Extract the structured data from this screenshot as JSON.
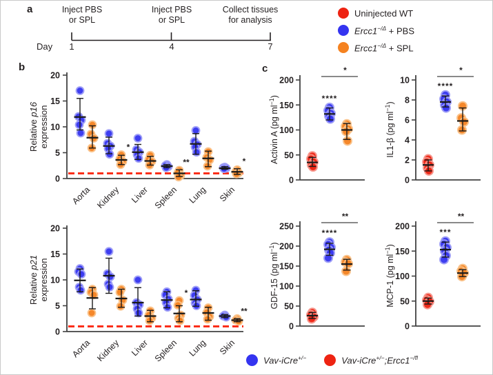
{
  "panel_a": {
    "label": "a",
    "day_label": "Day",
    "events": [
      {
        "text_lines": [
          "Inject PBS",
          "or SPL"
        ],
        "day": "1"
      },
      {
        "text_lines": [
          "Inject PBS",
          "or SPL"
        ],
        "day": "4"
      },
      {
        "text_lines": [
          "Collect tissues",
          "for analysis"
        ],
        "day": "7"
      }
    ]
  },
  "legend_top": {
    "items": [
      {
        "color": "red",
        "segments": [
          {
            "t": "Uninjected WT"
          }
        ]
      },
      {
        "color": "blue",
        "segments": [
          {
            "t": "Ercc1",
            "i": true
          },
          {
            "t": "−/Δ",
            "sup": true,
            "i": true
          },
          {
            "t": " + PBS"
          }
        ]
      },
      {
        "color": "orange",
        "segments": [
          {
            "t": "Ercc1",
            "i": true
          },
          {
            "t": "−/Δ",
            "sup": true,
            "i": true
          },
          {
            "t": " + SPL"
          }
        ]
      }
    ]
  },
  "legend_bottom": {
    "items": [
      {
        "color": "blue",
        "segments": [
          {
            "t": "Vav-iCre",
            "i": true
          },
          {
            "t": "+/−",
            "sup": true,
            "i": true
          }
        ]
      },
      {
        "color": "red",
        "segments": [
          {
            "t": "Vav-iCre",
            "i": true
          },
          {
            "t": "+/−",
            "sup": true,
            "i": true
          },
          {
            "t": ";",
            "i": true
          },
          {
            "t": "Ercc1",
            "i": true
          },
          {
            "t": "−/fl",
            "sup": true,
            "i": true
          }
        ]
      }
    ]
  },
  "panel_b": {
    "label": "b"
  },
  "panel_c": {
    "label": "c"
  },
  "colors": {
    "red": "#ee2312",
    "blue": "#3434f0",
    "orange": "#f58220",
    "halo_red": "#f7948a",
    "halo_blue": "#9a9af7",
    "halo_orange": "#fac085",
    "ref_line": "#fb2e18",
    "axis": "#404040",
    "errbar": "#1a1a1a",
    "sig_bar": "#787878",
    "sig_text": "#1a1a1a"
  },
  "chart_data": [
    {
      "id": "p16",
      "kind": "grouped",
      "type": "scatter",
      "ylabel_lines": [
        [
          {
            "t": "Relative "
          },
          {
            "t": "p16",
            "i": true
          }
        ],
        [
          {
            "t": "expression"
          }
        ]
      ],
      "ylim": [
        0,
        20
      ],
      "yticks": [
        0,
        5,
        10,
        15,
        20
      ],
      "ref_line": 1,
      "categories": [
        "Aorta",
        "Kidney",
        "Liver",
        "Spleen",
        "Lung",
        "Skin"
      ],
      "series": [
        {
          "name": "Ercc1-/Δ + PBS",
          "color": "blue",
          "points": [
            [
              17.0,
              12.0,
              11.3,
              10.4,
              8.8
            ],
            [
              8.7,
              6.8,
              6.3,
              5.8,
              4.7
            ],
            [
              7.8,
              5.6,
              5.1,
              4.6,
              3.9
            ],
            [
              2.7,
              2.5,
              2.3,
              2.1
            ],
            [
              9.3,
              7.2,
              6.6,
              6.1,
              5.1
            ],
            [
              2.2,
              2.1,
              2.0,
              1.9
            ]
          ],
          "mean": [
            11.9,
            6.3,
            5.1,
            2.4,
            6.7,
            2.0
          ],
          "err_lo": [
            9.4,
            4.8,
            3.7,
            2.1,
            4.7,
            1.8
          ],
          "err_hi": [
            15.5,
            8.0,
            6.6,
            2.7,
            8.7,
            2.3
          ]
        },
        {
          "name": "Ercc1-/Δ + SPL",
          "color": "orange",
          "points": [
            [
              10.4,
              8.6,
              7.8,
              5.9
            ],
            [
              4.6,
              3.8,
              3.3,
              2.7
            ],
            [
              4.5,
              3.7,
              3.3,
              2.6
            ],
            [
              1.6,
              1.1,
              0.6,
              0.3
            ],
            [
              5.2,
              4.1,
              3.6,
              2.4
            ],
            [
              1.7,
              1.3,
              1.1,
              0.9
            ]
          ],
          "mean": [
            7.9,
            3.6,
            3.4,
            1.0,
            3.9,
            1.3
          ],
          "err_lo": [
            5.9,
            2.7,
            2.6,
            0.4,
            2.3,
            0.8
          ],
          "err_hi": [
            10.2,
            4.5,
            4.3,
            1.7,
            5.3,
            1.9
          ]
        }
      ],
      "sig": [
        "",
        "*",
        "",
        "**",
        "",
        "*"
      ]
    },
    {
      "id": "p21",
      "kind": "grouped",
      "type": "scatter",
      "ylabel_lines": [
        [
          {
            "t": "Relative "
          },
          {
            "t": "p21",
            "i": true
          }
        ],
        [
          {
            "t": "expression"
          }
        ]
      ],
      "ylim": [
        0,
        20
      ],
      "yticks": [
        0,
        5,
        10,
        15,
        20
      ],
      "ref_line": 1,
      "categories": [
        "Aorta",
        "Kidney",
        "Liver",
        "Spleen",
        "Lung",
        "Skin"
      ],
      "series": [
        {
          "name": "Ercc1-/Δ + PBS",
          "color": "blue",
          "points": [
            [
              12.2,
              11.6,
              11.1,
              8.6,
              8.0
            ],
            [
              15.5,
              11.2,
              10.6,
              9.2,
              8.6
            ],
            [
              10.0,
              5.6,
              5.2,
              4.4,
              3.6
            ],
            [
              7.7,
              7.1,
              6.3,
              5.6,
              4.7
            ],
            [
              8.0,
              7.0,
              6.2,
              5.5,
              5.0
            ],
            [
              3.2,
              3.0,
              2.8
            ]
          ],
          "mean": [
            9.9,
            10.8,
            5.6,
            6.1,
            6.2,
            3.0
          ],
          "err_lo": [
            7.7,
            7.4,
            3.0,
            4.6,
            4.9,
            2.7
          ],
          "err_hi": [
            12.1,
            14.2,
            8.5,
            7.7,
            7.9,
            3.3
          ]
        },
        {
          "name": "Ercc1-/Δ + SPL",
          "color": "orange",
          "points": [
            [
              8.2,
              7.6,
              7.1,
              3.6
            ],
            [
              8.2,
              7.6,
              6.1,
              4.9
            ],
            [
              4.0,
              3.2,
              2.6,
              2.1
            ],
            [
              6.0,
              5.1,
              3.2,
              2.6,
              2.1
            ],
            [
              4.6,
              3.7,
              2.9,
              2.4
            ],
            [
              2.5,
              2.2,
              2.0
            ]
          ],
          "mean": [
            6.5,
            6.4,
            3.0,
            3.5,
            3.6,
            2.2
          ],
          "err_lo": [
            4.4,
            4.7,
            1.9,
            1.9,
            2.2,
            1.9
          ],
          "err_hi": [
            8.5,
            8.2,
            4.1,
            5.0,
            4.7,
            2.5
          ]
        }
      ],
      "sig": [
        "",
        "",
        "",
        "*",
        "",
        "**"
      ]
    },
    {
      "id": "activin",
      "kind": "columns",
      "type": "scatter",
      "ylabel_segments": [
        {
          "t": "Activin A (pg ml"
        },
        {
          "t": "−1",
          "sup": true
        },
        {
          "t": ")"
        }
      ],
      "ylim": [
        0,
        200
      ],
      "yticks": [
        0,
        50,
        100,
        150,
        200
      ],
      "columns": [
        {
          "name": "Uninjected WT",
          "color": "red",
          "dots": [
            48,
            42,
            36,
            30,
            26
          ],
          "mean": 35,
          "lo": 27,
          "hi": 45
        },
        {
          "name": "Ercc1-/Δ + PBS",
          "color": "blue",
          "dots": [
            145,
            139,
            133,
            128,
            122
          ],
          "mean": 132,
          "lo": 120,
          "hi": 144,
          "ann": "****"
        },
        {
          "name": "Ercc1-/Δ + SPL",
          "color": "orange",
          "dots": [
            112,
            107,
            102,
            97,
            78
          ],
          "mean": 100,
          "lo": 81,
          "hi": 113
        }
      ],
      "sig_bar": {
        "label": "*",
        "from": 1,
        "to": 2
      }
    },
    {
      "id": "il1b",
      "kind": "columns",
      "type": "scatter",
      "ylabel_segments": [
        {
          "t": "IL1-β (pg ml"
        },
        {
          "t": "−1",
          "sup": true
        },
        {
          "t": ")"
        }
      ],
      "ylim": [
        0,
        10
      ],
      "yticks": [
        0,
        2,
        4,
        6,
        8,
        10
      ],
      "columns": [
        {
          "name": "Uninjected WT",
          "color": "red",
          "dots": [
            2.1,
            1.8,
            1.5,
            1.2,
            0.9
          ],
          "mean": 1.5,
          "lo": 0.9,
          "hi": 2.0
        },
        {
          "name": "Ercc1-/Δ + PBS",
          "color": "blue",
          "dots": [
            8.5,
            8.1,
            7.8,
            7.5,
            7.2
          ],
          "mean": 7.8,
          "lo": 7.3,
          "hi": 8.4,
          "ann": "****"
        },
        {
          "name": "Ercc1-/Δ + SPL",
          "color": "orange",
          "dots": [
            7.4,
            6.2,
            5.8,
            5.0
          ],
          "mean": 5.9,
          "lo": 4.9,
          "hi": 7.2
        }
      ],
      "sig_bar": {
        "label": "*",
        "from": 1,
        "to": 2
      }
    },
    {
      "id": "gdf15",
      "kind": "columns",
      "type": "scatter",
      "ylabel_segments": [
        {
          "t": "GDF-15 (pg ml"
        },
        {
          "t": "−1",
          "sup": true
        },
        {
          "t": ")"
        }
      ],
      "ylim": [
        0,
        250
      ],
      "yticks": [
        0,
        50,
        100,
        150,
        200,
        250
      ],
      "columns": [
        {
          "name": "Uninjected WT",
          "color": "red",
          "dots": [
            34,
            28,
            23,
            18
          ],
          "mean": 26,
          "lo": 19,
          "hi": 34
        },
        {
          "name": "Ercc1-/Δ + PBS",
          "color": "blue",
          "dots": [
            210,
            204,
            197,
            190,
            183,
            170
          ],
          "mean": 192,
          "lo": 177,
          "hi": 207,
          "ann": "****"
        },
        {
          "name": "Ercc1-/Δ + SPL",
          "color": "orange",
          "dots": [
            166,
            160,
            156,
            137
          ],
          "mean": 155,
          "lo": 140,
          "hi": 167
        }
      ],
      "sig_bar": {
        "label": "**",
        "from": 1,
        "to": 2
      }
    },
    {
      "id": "mcp1",
      "kind": "columns",
      "type": "scatter",
      "ylabel_segments": [
        {
          "t": "MCP-1 (pg ml"
        },
        {
          "t": "−1",
          "sup": true
        },
        {
          "t": ")"
        }
      ],
      "ylim": [
        0,
        200
      ],
      "yticks": [
        0,
        50,
        100,
        150,
        200
      ],
      "columns": [
        {
          "name": "Uninjected WT",
          "color": "red",
          "dots": [
            57,
            52,
            49,
            43
          ],
          "mean": 50,
          "lo": 44,
          "hi": 56
        },
        {
          "name": "Ercc1-/Δ + PBS",
          "color": "blue",
          "dots": [
            170,
            164,
            157,
            150,
            141,
            133
          ],
          "mean": 153,
          "lo": 138,
          "hi": 168,
          "ann": "***"
        },
        {
          "name": "Ercc1-/Δ + SPL",
          "color": "orange",
          "dots": [
            115,
            110,
            106,
            99
          ],
          "mean": 106,
          "lo": 99,
          "hi": 113
        }
      ],
      "sig_bar": {
        "label": "**",
        "from": 1,
        "to": 2
      }
    }
  ]
}
